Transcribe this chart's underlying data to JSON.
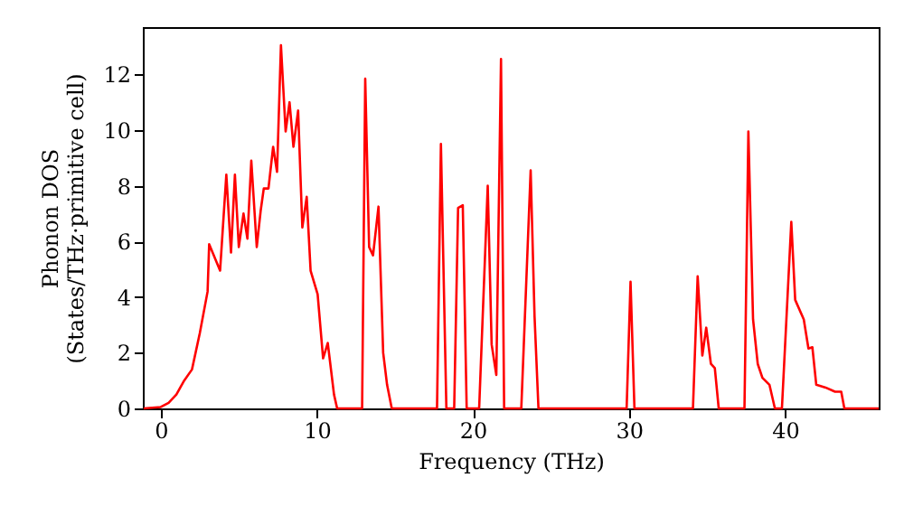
{
  "chart_data": {
    "type": "line",
    "xlabel": "Frequency (THz)",
    "ylabel": "Phonon DOS\n(States/THz·primitive cell)",
    "x": [
      -1.1,
      0,
      0.5,
      1,
      1.5,
      2,
      2.5,
      3,
      3.1,
      3.8,
      4.2,
      4.5,
      4.75,
      5.0,
      5.3,
      5.55,
      5.8,
      6.15,
      6.4,
      6.6,
      6.9,
      7.2,
      7.45,
      7.7,
      8.0,
      8.25,
      8.5,
      8.8,
      9.07,
      9.35,
      9.6,
      10.05,
      10.4,
      10.7,
      11.1,
      11.3,
      12.9,
      13.1,
      13.35,
      13.6,
      13.95,
      14.25,
      14.5,
      14.8,
      17.7,
      17.95,
      18.3,
      18.8,
      19.05,
      19.35,
      19.6,
      20.4,
      20.95,
      21.2,
      21.5,
      21.8,
      22.0,
      23.1,
      23.7,
      23.95,
      24.2,
      29.85,
      30.1,
      30.35,
      34.1,
      34.4,
      34.7,
      34.95,
      35.25,
      35.5,
      35.75,
      37.4,
      37.65,
      37.95,
      38.25,
      38.55,
      39.0,
      39.35,
      39.8,
      40.4,
      40.65,
      41.2,
      41.5,
      41.75,
      42.0,
      42.6,
      43.2,
      43.6,
      43.8,
      46
    ],
    "series": [
      {
        "color": "#ff0000",
        "values": [
          0,
          0.05,
          0.2,
          0.5,
          1,
          1.4,
          2.7,
          4.2,
          5.9,
          4.95,
          8.4,
          5.6,
          8.4,
          5.8,
          7.0,
          6.1,
          8.9,
          5.8,
          7.1,
          7.9,
          7.9,
          9.4,
          8.5,
          13.05,
          9.95,
          11.0,
          9.4,
          10.7,
          6.5,
          7.6,
          4.95,
          4.1,
          1.8,
          2.35,
          0.5,
          0,
          0,
          11.85,
          5.8,
          5.5,
          7.25,
          2.0,
          0.85,
          0,
          0,
          9.5,
          0,
          0,
          7.2,
          7.3,
          0,
          0,
          8.0,
          2.3,
          1.2,
          12.55,
          0,
          0,
          8.55,
          3.3,
          0,
          0,
          4.55,
          0,
          0,
          4.75,
          1.9,
          2.9,
          1.6,
          1.45,
          0,
          0,
          9.95,
          3.2,
          1.6,
          1.1,
          0.85,
          0,
          0,
          6.7,
          3.9,
          3.2,
          2.15,
          2.2,
          0.85,
          0.75,
          0.6,
          0.6,
          0,
          0
        ]
      }
    ],
    "xlim": [
      -1.15,
      46
    ],
    "xticks": [
      0,
      10,
      20,
      30,
      40
    ],
    "ylim": [
      0,
      13.7
    ],
    "yticks": [
      0,
      2,
      4,
      6,
      8,
      10,
      12
    ],
    "grid": false,
    "marker": "none",
    "line_style": "solid"
  }
}
